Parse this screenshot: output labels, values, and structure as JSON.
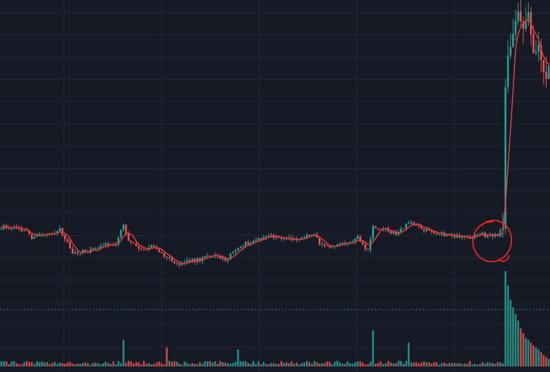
{
  "colors": {
    "background": "#161a25",
    "grid": "#232838",
    "bull": "#26a69a",
    "bear": "#ef5350",
    "moving_average": "#e03a3a",
    "annotation": "#e02525",
    "separator": "#3a8f88"
  },
  "chart_data": {
    "type": "candlestick",
    "title": "",
    "xlabel": "",
    "ylabel": "",
    "grid": true,
    "legend": "none",
    "axes_visible": false,
    "price_scale_ylim": [
      0,
      100
    ],
    "price_series": {
      "name": "",
      "key_points": [
        {
          "i": 0,
          "v": 15.5
        },
        {
          "i": 5,
          "v": 15.0
        },
        {
          "i": 10,
          "v": 13.5
        },
        {
          "i": 12,
          "v": 11.5
        },
        {
          "i": 15,
          "v": 13.0
        },
        {
          "i": 18,
          "v": 12.5
        },
        {
          "i": 23,
          "v": 14.0
        },
        {
          "i": 28,
          "v": 5.5
        },
        {
          "i": 35,
          "v": 6.0
        },
        {
          "i": 40,
          "v": 8.5
        },
        {
          "i": 45,
          "v": 9.0
        },
        {
          "i": 48,
          "v": 16.0
        },
        {
          "i": 50,
          "v": 9.5
        },
        {
          "i": 55,
          "v": 6.5
        },
        {
          "i": 60,
          "v": 7.5
        },
        {
          "i": 65,
          "v": 3.5
        },
        {
          "i": 70,
          "v": 0.5
        },
        {
          "i": 73,
          "v": 2.0
        },
        {
          "i": 78,
          "v": 2.5
        },
        {
          "i": 82,
          "v": 4.5
        },
        {
          "i": 88,
          "v": 2.5
        },
        {
          "i": 93,
          "v": 7.5
        },
        {
          "i": 100,
          "v": 10.5
        },
        {
          "i": 105,
          "v": 12.0
        },
        {
          "i": 110,
          "v": 11.0
        },
        {
          "i": 116,
          "v": 10.0
        },
        {
          "i": 122,
          "v": 13.0
        },
        {
          "i": 126,
          "v": 8.0
        },
        {
          "i": 130,
          "v": 7.0
        },
        {
          "i": 135,
          "v": 9.0
        },
        {
          "i": 140,
          "v": 11.0
        },
        {
          "i": 144,
          "v": 6.0
        },
        {
          "i": 146,
          "v": 15.5
        },
        {
          "i": 150,
          "v": 14.5
        },
        {
          "i": 155,
          "v": 12.5
        },
        {
          "i": 160,
          "v": 17.0
        },
        {
          "i": 165,
          "v": 14.5
        },
        {
          "i": 170,
          "v": 13.0
        },
        {
          "i": 175,
          "v": 12.5
        },
        {
          "i": 180,
          "v": 11.5
        },
        {
          "i": 185,
          "v": 11.0
        },
        {
          "i": 187,
          "v": 13.0
        },
        {
          "i": 190,
          "v": 12.0
        },
        {
          "i": 195,
          "v": 12.5
        },
        {
          "i": 197,
          "v": 14.0
        },
        {
          "i": 198,
          "v": 70.0
        },
        {
          "i": 199,
          "v": 82.0
        },
        {
          "i": 201,
          "v": 90.0
        },
        {
          "i": 203,
          "v": 100.0
        },
        {
          "i": 205,
          "v": 92.0
        },
        {
          "i": 207,
          "v": 98.5
        },
        {
          "i": 209,
          "v": 83.0
        },
        {
          "i": 211,
          "v": 85.5
        },
        {
          "i": 213,
          "v": 75.5
        },
        {
          "i": 214,
          "v": 73.5
        },
        {
          "i": 215,
          "v": 78.0
        }
      ]
    },
    "volume_series": {
      "name": "",
      "baseline": 2,
      "spikes": [
        {
          "i": 48,
          "v": 28
        },
        {
          "i": 65,
          "v": 20
        },
        {
          "i": 93,
          "v": 18
        },
        {
          "i": 146,
          "v": 38
        },
        {
          "i": 160,
          "v": 25
        },
        {
          "i": 198,
          "v": 100
        },
        {
          "i": 199,
          "v": 85
        },
        {
          "i": 200,
          "v": 70
        },
        {
          "i": 201,
          "v": 62
        },
        {
          "i": 202,
          "v": 55
        },
        {
          "i": 203,
          "v": 48
        },
        {
          "i": 204,
          "v": 40
        },
        {
          "i": 205,
          "v": 35
        },
        {
          "i": 206,
          "v": 30
        },
        {
          "i": 207,
          "v": 28
        },
        {
          "i": 208,
          "v": 25
        },
        {
          "i": 209,
          "v": 22
        },
        {
          "i": 210,
          "v": 20
        },
        {
          "i": 211,
          "v": 18
        },
        {
          "i": 212,
          "v": 15
        },
        {
          "i": 213,
          "v": 12
        },
        {
          "i": 214,
          "v": 10
        },
        {
          "i": 215,
          "v": 8
        }
      ]
    },
    "annotations": [
      {
        "type": "hand-drawn-circle",
        "near_bar": 193,
        "color": "#e02525"
      }
    ]
  }
}
